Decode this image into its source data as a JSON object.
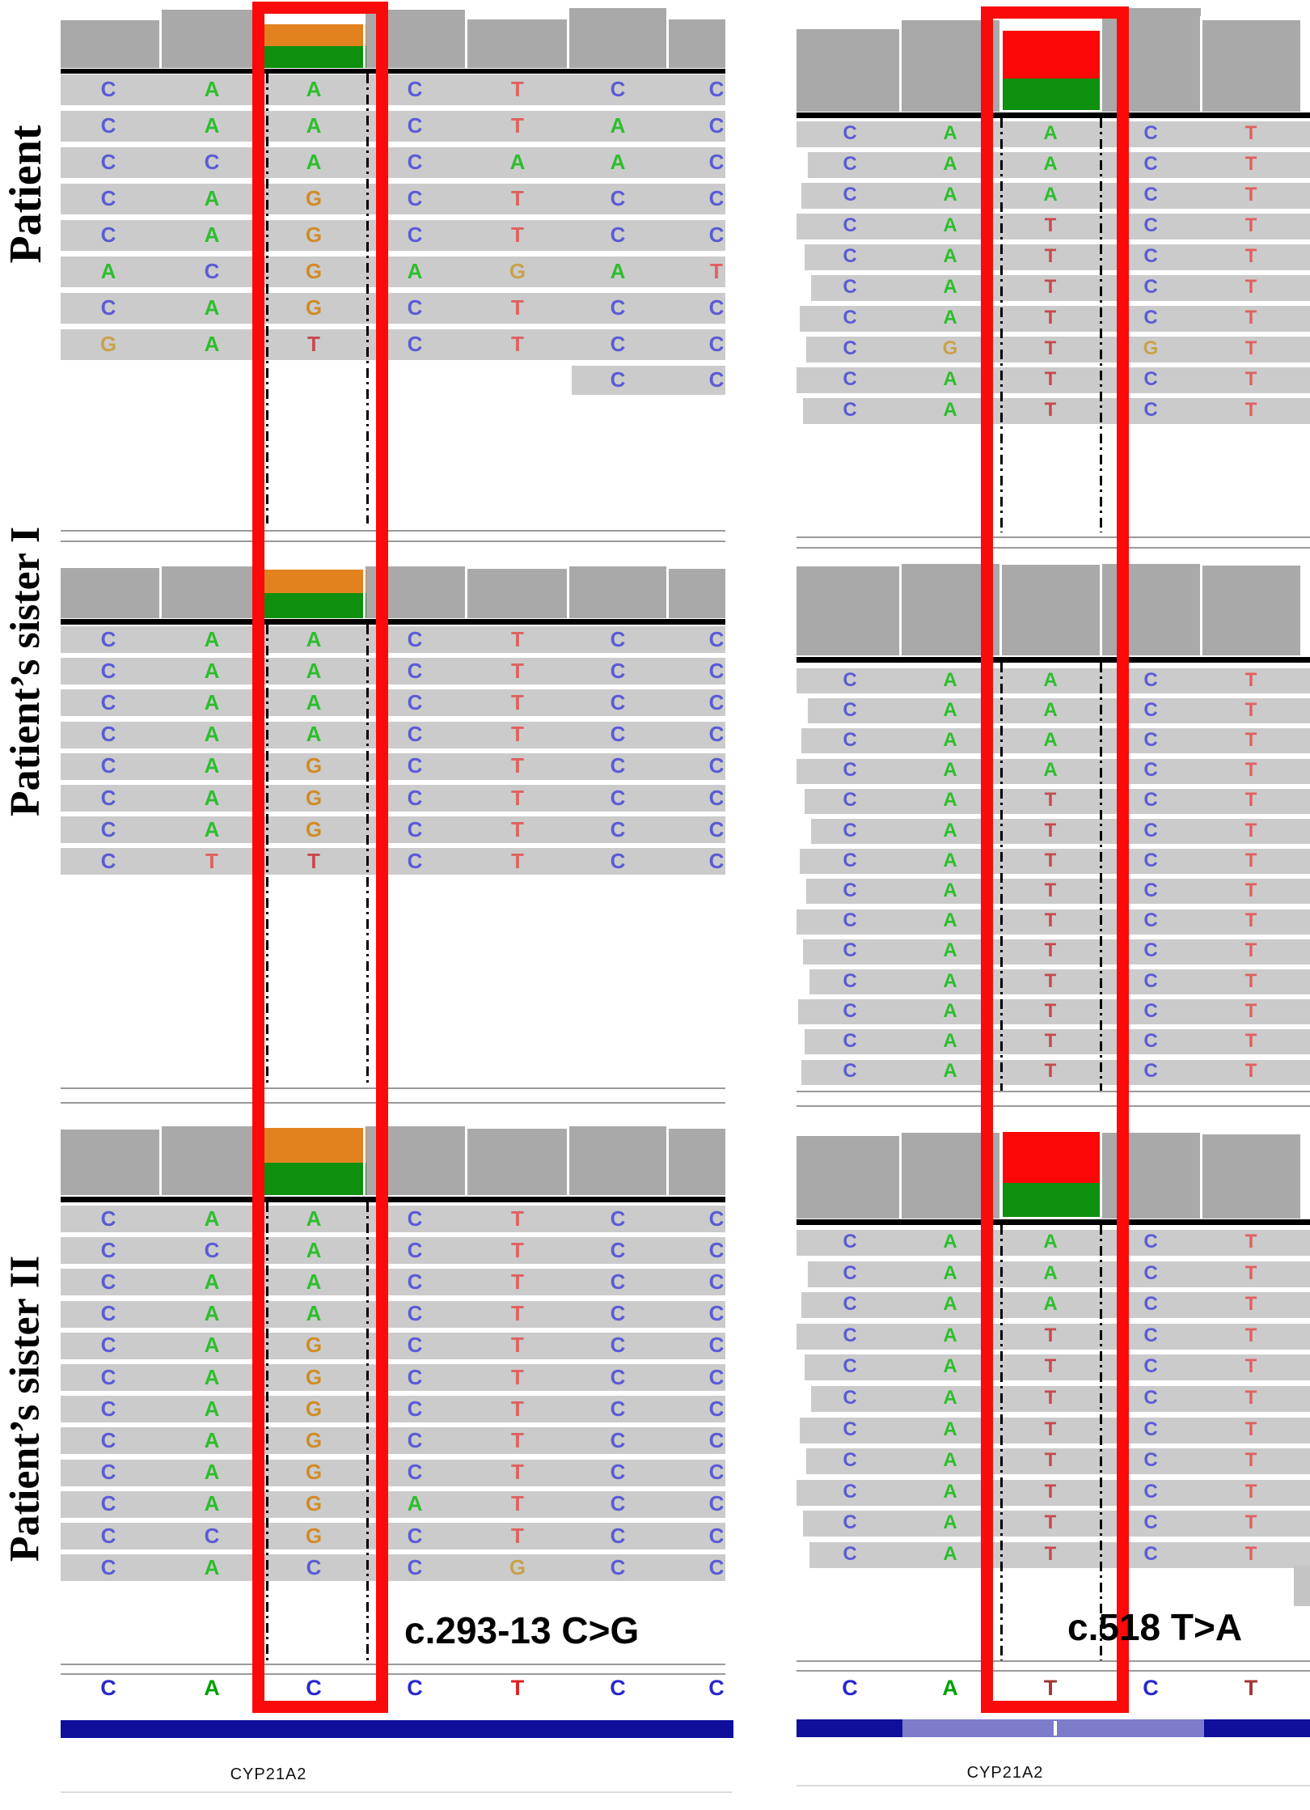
{
  "samples": [
    {
      "label": "Patient"
    },
    {
      "label": "Patient’s sister I"
    },
    {
      "label": "Patient’s sister II"
    }
  ],
  "annotations": {
    "left": "c.293-13 C>G",
    "right": "c.518 T>A"
  },
  "gene": {
    "left_name": "CYP21A2",
    "right_name": "CYP21A2"
  },
  "reference": {
    "left": [
      "C",
      "A",
      "C",
      "C",
      "T",
      "C",
      "C"
    ],
    "right": [
      "C",
      "A",
      "T",
      "C",
      "T"
    ]
  },
  "panels": {
    "patient_left": {
      "rows": [
        "CAACTCC",
        "CAACTAC",
        "CCACAAC",
        "CAGCTCC",
        "CAGCTCC",
        "ACGAGAT",
        "CAGCTCC",
        "GATCTCC"
      ],
      "partial_row": {
        "bases": "CC",
        "col_start": 5
      }
    },
    "patient_right": {
      "rows": [
        "CAACT",
        "CAACT",
        "CAACT",
        "CATCT",
        "CATCT",
        "CATCT",
        "CATCT",
        "CGTGT",
        "CATCT",
        "CATCT"
      ]
    },
    "sister1_left": {
      "rows": [
        "CAACTCC",
        "CAACTCC",
        "CAACTCC",
        "CAACTCC",
        "CAGCTCC",
        "CAGCTCC",
        "CAGCTCC",
        "CTTCTCC"
      ]
    },
    "sister1_right": {
      "rows": [
        "CAACT",
        "CAACT",
        "CAACT",
        "CAACT",
        "CATCT",
        "CATCT",
        "CATCT",
        "CATCT",
        "CATCT",
        "CATCT",
        "CATCT",
        "CATCT",
        "CATCT",
        "CATCT"
      ]
    },
    "sister2_left": {
      "rows": [
        "CAACTCC",
        "CCACTCC",
        "CAACTCC",
        "CAACTCC",
        "CAGCTCC",
        "CAGCTCC",
        "CAGCTCC",
        "CAGCTCC",
        "CAGCTCC",
        "CAGATCC",
        "CCGCTCC",
        "CACCGCC"
      ]
    },
    "sister2_right": {
      "rows": [
        "CAACT",
        "CAACT",
        "CAACT",
        "CATCT",
        "CATCT",
        "CATCT",
        "CATCT",
        "CATCT",
        "CATCT",
        "CATCT",
        "CATCT"
      ]
    }
  },
  "colors": {
    "base_A": "#2DBE2D",
    "base_C": "#5B5BD6",
    "base_G": "#C8A24B",
    "base_T": "#E06060",
    "variant_G": "#D08C28",
    "variant_T": "#C84850",
    "ref_A": "#00A000",
    "ref_C": "#2828CC",
    "ref_T": "#E02020",
    "ref_T_dark": "#A03535",
    "coverage_gray": "#A9A9A9",
    "coverage_orange": "#E2821E",
    "coverage_green": "#0E8F0E",
    "coverage_red": "#FB0707",
    "read_row_gray": "#CBCBCB",
    "highlight_red": "#FA0A0A",
    "gene_navy": "#0F0F9B",
    "gene_light": "#7C7CCB",
    "black_line": "#000000",
    "separator_gray": "#9A9A9A",
    "faint_line": "#DCDCDC",
    "scrollbar_gray": "#C4C4C4"
  }
}
